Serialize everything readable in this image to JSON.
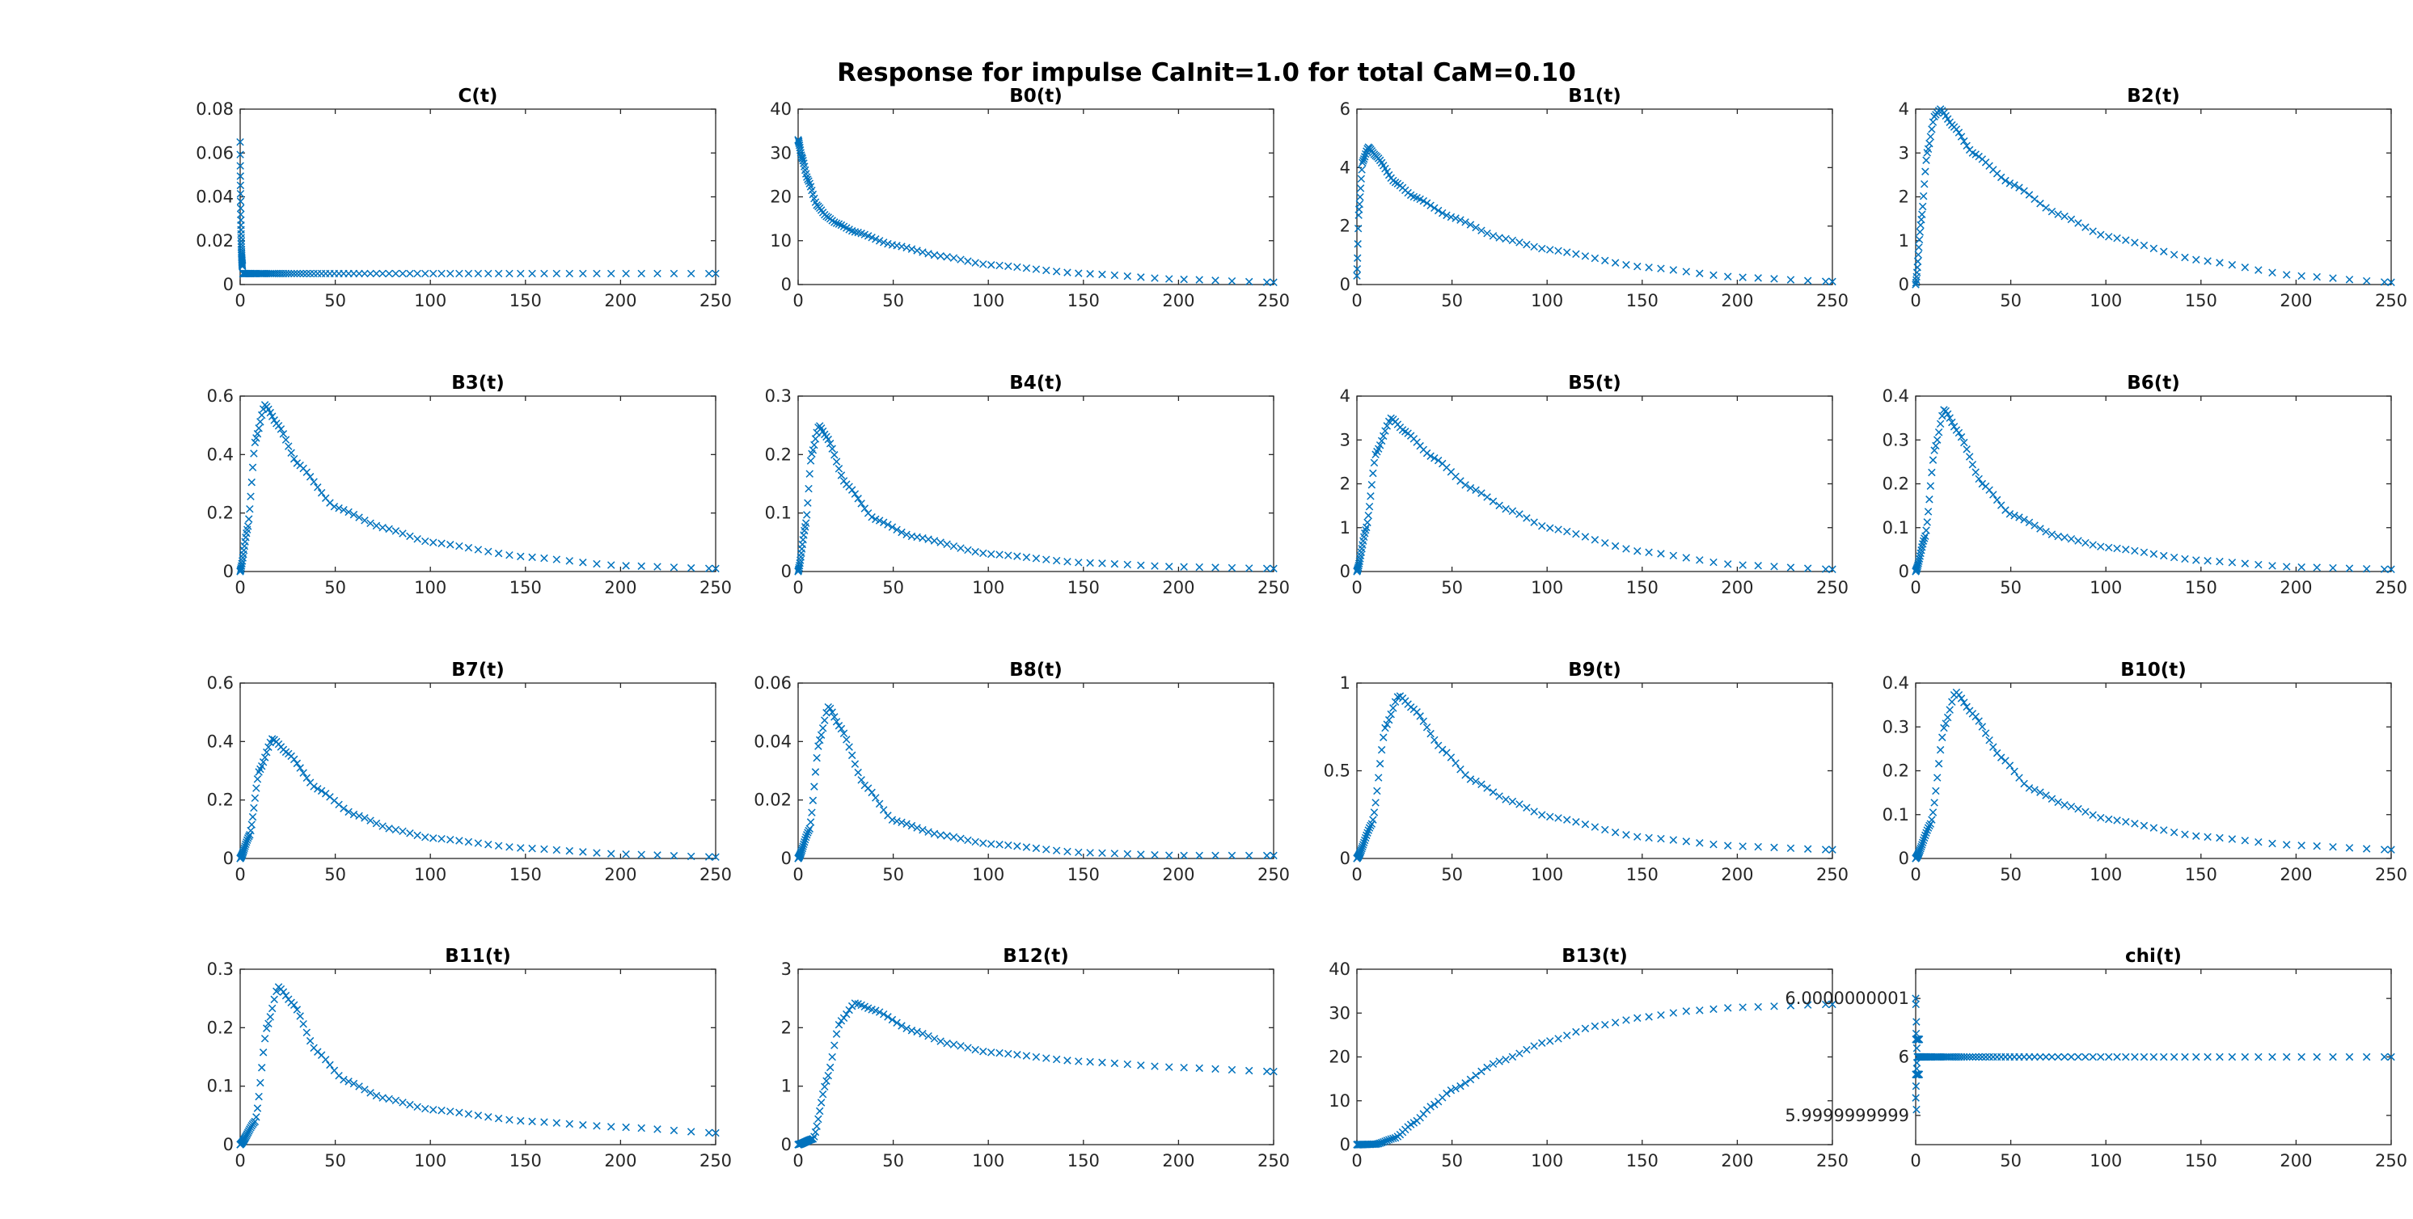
{
  "figure": {
    "title": "Response for impulse CaInit=1.0 for total CaM=0.10",
    "marker": "x",
    "marker_color": "#0072BD"
  },
  "chart_data": [
    {
      "type": "scatter",
      "title": "C(t)",
      "xlim": [
        0,
        250
      ],
      "ylim": [
        0,
        0.08
      ],
      "xticks": [
        0,
        50,
        100,
        150,
        200,
        250
      ],
      "yticks": [
        0,
        0.02,
        0.04,
        0.06,
        0.08
      ],
      "curve": {
        "kind": "spike",
        "base": 0.005,
        "peak": 0.065,
        "decay": 0.4
      }
    },
    {
      "type": "scatter",
      "title": "B0(t)",
      "xlim": [
        0,
        250
      ],
      "ylim": [
        0,
        40
      ],
      "xticks": [
        0,
        50,
        100,
        150,
        200,
        250
      ],
      "yticks": [
        0,
        10,
        20,
        30,
        40
      ],
      "curve": {
        "kind": "decay",
        "start": 33,
        "points": [
          [
            0,
            33
          ],
          [
            2,
            29
          ],
          [
            5,
            24
          ],
          [
            10,
            18
          ],
          [
            15,
            15.5
          ],
          [
            20,
            14
          ],
          [
            30,
            12
          ],
          [
            50,
            9
          ],
          [
            75,
            6.5
          ],
          [
            100,
            4.5
          ],
          [
            150,
            2.5
          ],
          [
            200,
            1.2
          ],
          [
            250,
            0.5
          ]
        ]
      }
    },
    {
      "type": "scatter",
      "title": "B1(t)",
      "xlim": [
        0,
        250
      ],
      "ylim": [
        0,
        6
      ],
      "xticks": [
        0,
        50,
        100,
        150,
        200,
        250
      ],
      "yticks": [
        0,
        2,
        4,
        6
      ],
      "curve": {
        "kind": "points",
        "points": [
          [
            0,
            0.3
          ],
          [
            1,
            2.5
          ],
          [
            3,
            4.2
          ],
          [
            6,
            4.7
          ],
          [
            10,
            4.4
          ],
          [
            20,
            3.5
          ],
          [
            30,
            3
          ],
          [
            50,
            2.3
          ],
          [
            75,
            1.6
          ],
          [
            100,
            1.2
          ],
          [
            150,
            0.6
          ],
          [
            200,
            0.25
          ],
          [
            250,
            0.1
          ]
        ]
      }
    },
    {
      "type": "scatter",
      "title": "B2(t)",
      "xlim": [
        0,
        250
      ],
      "ylim": [
        0,
        4
      ],
      "xticks": [
        0,
        50,
        100,
        150,
        200,
        250
      ],
      "yticks": [
        0,
        1,
        2,
        3,
        4
      ],
      "curve": {
        "kind": "points",
        "points": [
          [
            0,
            0
          ],
          [
            3,
            1.5
          ],
          [
            6,
            3
          ],
          [
            10,
            3.85
          ],
          [
            13,
            4
          ],
          [
            20,
            3.6
          ],
          [
            30,
            3
          ],
          [
            50,
            2.3
          ],
          [
            75,
            1.6
          ],
          [
            100,
            1.1
          ],
          [
            150,
            0.55
          ],
          [
            200,
            0.2
          ],
          [
            250,
            0.05
          ]
        ]
      }
    },
    {
      "type": "scatter",
      "title": "B3(t)",
      "xlim": [
        0,
        250
      ],
      "ylim": [
        0,
        0.6
      ],
      "xticks": [
        0,
        50,
        100,
        150,
        200,
        250
      ],
      "yticks": [
        0,
        0.2,
        0.4,
        0.6
      ],
      "curve": {
        "kind": "points",
        "points": [
          [
            0,
            0
          ],
          [
            4,
            0.15
          ],
          [
            8,
            0.45
          ],
          [
            13,
            0.57
          ],
          [
            20,
            0.5
          ],
          [
            30,
            0.37
          ],
          [
            50,
            0.22
          ],
          [
            75,
            0.15
          ],
          [
            100,
            0.1
          ],
          [
            150,
            0.05
          ],
          [
            200,
            0.02
          ],
          [
            250,
            0.01
          ]
        ]
      }
    },
    {
      "type": "scatter",
      "title": "B4(t)",
      "xlim": [
        0,
        250
      ],
      "ylim": [
        0,
        0.3
      ],
      "xticks": [
        0,
        50,
        100,
        150,
        200,
        250
      ],
      "yticks": [
        0,
        0.1,
        0.2,
        0.3
      ],
      "curve": {
        "kind": "points",
        "points": [
          [
            0,
            0
          ],
          [
            4,
            0.08
          ],
          [
            7,
            0.2
          ],
          [
            11,
            0.25
          ],
          [
            15,
            0.23
          ],
          [
            25,
            0.15
          ],
          [
            40,
            0.09
          ],
          [
            60,
            0.06
          ],
          [
            100,
            0.03
          ],
          [
            150,
            0.015
          ],
          [
            200,
            0.008
          ],
          [
            250,
            0.005
          ]
        ]
      }
    },
    {
      "type": "scatter",
      "title": "B5(t)",
      "xlim": [
        0,
        250
      ],
      "ylim": [
        0,
        4
      ],
      "xticks": [
        0,
        50,
        100,
        150,
        200,
        250
      ],
      "yticks": [
        0,
        1,
        2,
        3,
        4
      ],
      "curve": {
        "kind": "points",
        "points": [
          [
            0,
            0
          ],
          [
            5,
            1
          ],
          [
            10,
            2.7
          ],
          [
            18,
            3.5
          ],
          [
            25,
            3.2
          ],
          [
            40,
            2.6
          ],
          [
            60,
            1.9
          ],
          [
            80,
            1.4
          ],
          [
            100,
            1
          ],
          [
            150,
            0.45
          ],
          [
            200,
            0.15
          ],
          [
            250,
            0.05
          ]
        ]
      }
    },
    {
      "type": "scatter",
      "title": "B6(t)",
      "xlim": [
        0,
        250
      ],
      "ylim": [
        0,
        0.4
      ],
      "xticks": [
        0,
        50,
        100,
        150,
        200,
        250
      ],
      "yticks": [
        0,
        0.1,
        0.2,
        0.3,
        0.4
      ],
      "curve": {
        "kind": "points",
        "points": [
          [
            0,
            0
          ],
          [
            5,
            0.08
          ],
          [
            10,
            0.28
          ],
          [
            15,
            0.37
          ],
          [
            22,
            0.32
          ],
          [
            35,
            0.2
          ],
          [
            50,
            0.13
          ],
          [
            75,
            0.08
          ],
          [
            100,
            0.055
          ],
          [
            150,
            0.025
          ],
          [
            200,
            0.01
          ],
          [
            250,
            0.005
          ]
        ]
      }
    },
    {
      "type": "scatter",
      "title": "B7(t)",
      "xlim": [
        0,
        250
      ],
      "ylim": [
        0,
        0.6
      ],
      "xticks": [
        0,
        50,
        100,
        150,
        200,
        250
      ],
      "yticks": [
        0,
        0.2,
        0.4,
        0.6
      ],
      "curve": {
        "kind": "points",
        "points": [
          [
            0,
            0
          ],
          [
            5,
            0.08
          ],
          [
            10,
            0.3
          ],
          [
            17,
            0.41
          ],
          [
            25,
            0.36
          ],
          [
            40,
            0.24
          ],
          [
            60,
            0.15
          ],
          [
            80,
            0.1
          ],
          [
            100,
            0.07
          ],
          [
            150,
            0.035
          ],
          [
            200,
            0.015
          ],
          [
            250,
            0.005
          ]
        ]
      }
    },
    {
      "type": "scatter",
      "title": "B8(t)",
      "xlim": [
        0,
        250
      ],
      "ylim": [
        0,
        0.06
      ],
      "xticks": [
        0,
        50,
        100,
        150,
        200,
        250
      ],
      "yticks": [
        0,
        0.02,
        0.04,
        0.06
      ],
      "curve": {
        "kind": "points",
        "points": [
          [
            0,
            0
          ],
          [
            6,
            0.01
          ],
          [
            11,
            0.04
          ],
          [
            16,
            0.052
          ],
          [
            22,
            0.045
          ],
          [
            35,
            0.025
          ],
          [
            50,
            0.013
          ],
          [
            75,
            0.008
          ],
          [
            100,
            0.005
          ],
          [
            150,
            0.002
          ],
          [
            200,
            0.001
          ],
          [
            250,
            0.001
          ]
        ]
      }
    },
    {
      "type": "scatter",
      "title": "B9(t)",
      "xlim": [
        0,
        250
      ],
      "ylim": [
        0,
        1
      ],
      "xticks": [
        0,
        50,
        100,
        150,
        200,
        250
      ],
      "yticks": [
        0,
        0.5,
        1
      ],
      "curve": {
        "kind": "points",
        "points": [
          [
            0,
            0
          ],
          [
            8,
            0.2
          ],
          [
            15,
            0.75
          ],
          [
            22,
            0.93
          ],
          [
            30,
            0.85
          ],
          [
            45,
            0.62
          ],
          [
            60,
            0.45
          ],
          [
            80,
            0.33
          ],
          [
            100,
            0.24
          ],
          [
            150,
            0.12
          ],
          [
            200,
            0.07
          ],
          [
            250,
            0.05
          ]
        ]
      }
    },
    {
      "type": "scatter",
      "title": "B10(t)",
      "xlim": [
        0,
        250
      ],
      "ylim": [
        0,
        0.4
      ],
      "xticks": [
        0,
        50,
        100,
        150,
        200,
        250
      ],
      "yticks": [
        0,
        0.1,
        0.2,
        0.3,
        0.4
      ],
      "curve": {
        "kind": "points",
        "points": [
          [
            0,
            0
          ],
          [
            8,
            0.08
          ],
          [
            15,
            0.3
          ],
          [
            21,
            0.38
          ],
          [
            30,
            0.33
          ],
          [
            45,
            0.23
          ],
          [
            60,
            0.16
          ],
          [
            80,
            0.12
          ],
          [
            100,
            0.09
          ],
          [
            150,
            0.05
          ],
          [
            200,
            0.03
          ],
          [
            250,
            0.02
          ]
        ]
      }
    },
    {
      "type": "scatter",
      "title": "B11(t)",
      "xlim": [
        0,
        250
      ],
      "ylim": [
        0,
        0.3
      ],
      "xticks": [
        0,
        50,
        100,
        150,
        200,
        250
      ],
      "yticks": [
        0,
        0.1,
        0.2,
        0.3
      ],
      "curve": {
        "kind": "points",
        "points": [
          [
            0,
            0
          ],
          [
            8,
            0.04
          ],
          [
            14,
            0.2
          ],
          [
            20,
            0.27
          ],
          [
            28,
            0.24
          ],
          [
            40,
            0.16
          ],
          [
            55,
            0.11
          ],
          [
            75,
            0.08
          ],
          [
            100,
            0.06
          ],
          [
            150,
            0.04
          ],
          [
            200,
            0.03
          ],
          [
            250,
            0.02
          ]
        ]
      }
    },
    {
      "type": "scatter",
      "title": "B12(t)",
      "xlim": [
        0,
        250
      ],
      "ylim": [
        0,
        3
      ],
      "xticks": [
        0,
        50,
        100,
        150,
        200,
        250
      ],
      "yticks": [
        0,
        1,
        2,
        3
      ],
      "curve": {
        "kind": "points",
        "points": [
          [
            0,
            0
          ],
          [
            8,
            0.1
          ],
          [
            15,
            1.1
          ],
          [
            22,
            2.1
          ],
          [
            30,
            2.42
          ],
          [
            40,
            2.3
          ],
          [
            60,
            1.95
          ],
          [
            80,
            1.72
          ],
          [
            100,
            1.58
          ],
          [
            150,
            1.42
          ],
          [
            200,
            1.32
          ],
          [
            250,
            1.25
          ]
        ]
      }
    },
    {
      "type": "scatter",
      "title": "B13(t)",
      "xlim": [
        0,
        250
      ],
      "ylim": [
        0,
        40
      ],
      "xticks": [
        0,
        50,
        100,
        150,
        200,
        250
      ],
      "yticks": [
        0,
        10,
        20,
        30,
        40
      ],
      "curve": {
        "kind": "points",
        "points": [
          [
            0,
            0
          ],
          [
            10,
            0.1
          ],
          [
            20,
            1.5
          ],
          [
            30,
            5
          ],
          [
            40,
            9
          ],
          [
            50,
            12.5
          ],
          [
            75,
            19
          ],
          [
            100,
            23.5
          ],
          [
            125,
            27
          ],
          [
            150,
            29
          ],
          [
            175,
            30.5
          ],
          [
            200,
            31.3
          ],
          [
            250,
            32
          ]
        ]
      }
    },
    {
      "type": "scatter",
      "title": "chi(t)",
      "xlim": [
        0,
        250
      ],
      "ylim": [
        5.99999999985,
        6.00000000015
      ],
      "xticks": [
        0,
        50,
        100,
        150,
        200,
        250
      ],
      "yticks": [
        5.9999999999,
        6,
        6.0000000001
      ],
      "ytick_labels": [
        "5.9999999999",
        "6",
        "6.0000000001"
      ],
      "curve": {
        "kind": "chi",
        "value": 6
      }
    }
  ]
}
